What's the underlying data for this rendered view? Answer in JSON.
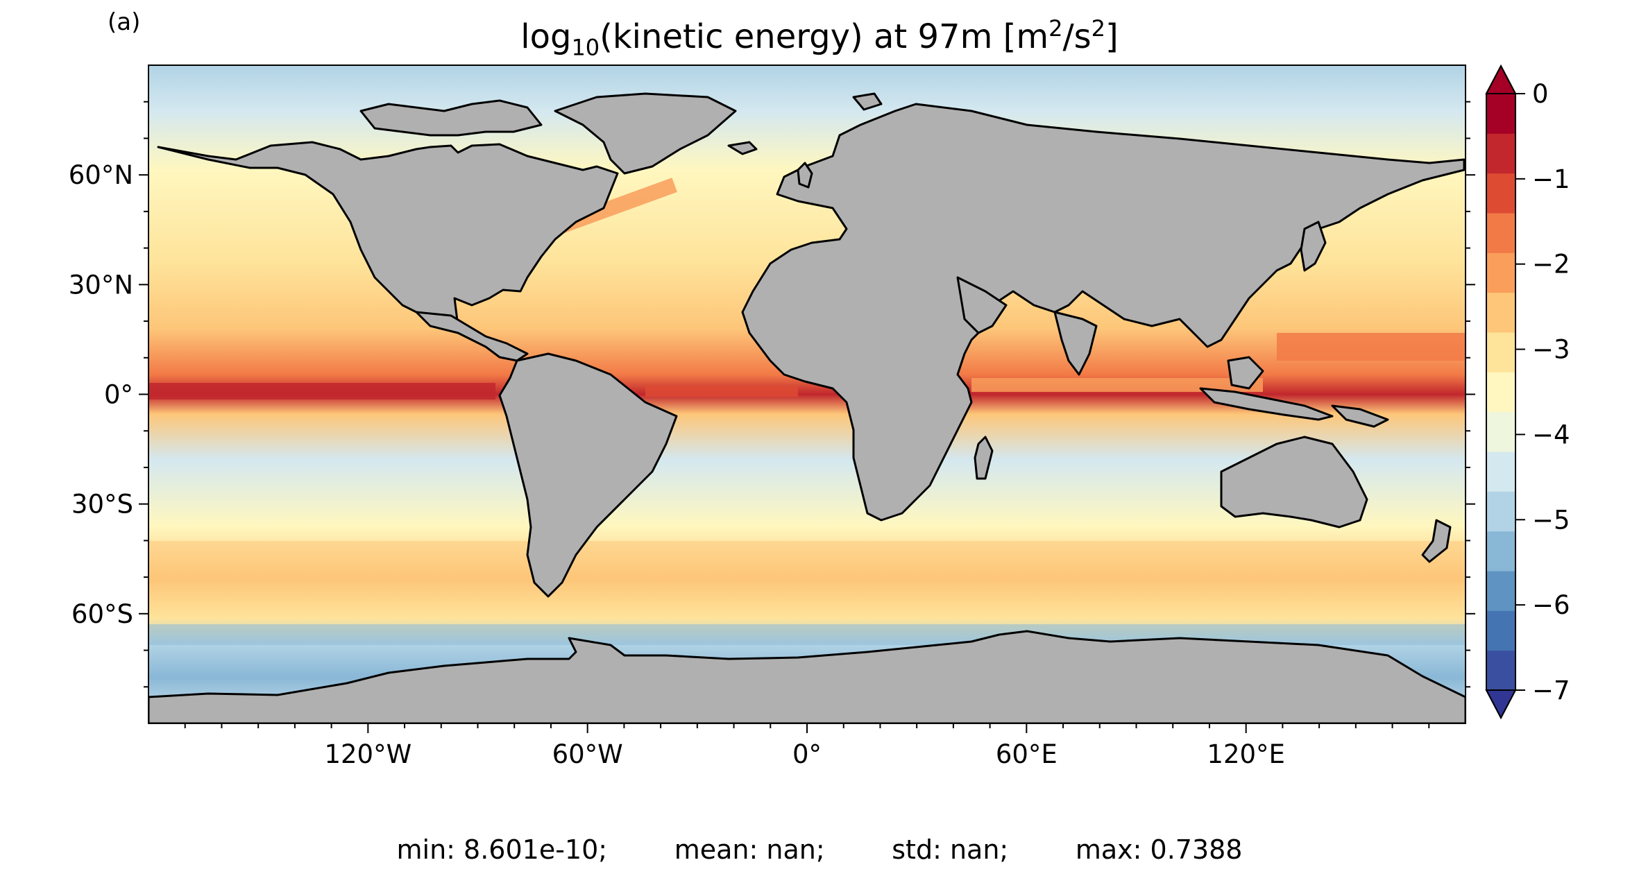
{
  "panel_label": "(a)",
  "title": {
    "prefix": "log",
    "sub": "10",
    "middle": "(kinetic energy) at 97m [m",
    "sup1": "2",
    "mid2": "/s",
    "sup2": "2",
    "suffix": "]"
  },
  "map": {
    "projection": "equirectangular",
    "lon_range": [
      -180,
      180
    ],
    "lat_range": [
      -90,
      90
    ],
    "land_color": "#b0b0b0",
    "coast_color": "#000000",
    "ice_color": "#ffffff",
    "lat_ticks": [
      {
        "value": 60,
        "label": "60°N"
      },
      {
        "value": 30,
        "label": "30°N"
      },
      {
        "value": 0,
        "label": "0°"
      },
      {
        "value": -30,
        "label": "30°S"
      },
      {
        "value": -60,
        "label": "60°S"
      }
    ],
    "lon_ticks": [
      {
        "value": -120,
        "label": "120°W"
      },
      {
        "value": -60,
        "label": "60°W"
      },
      {
        "value": 0,
        "label": "0°"
      },
      {
        "value": 60,
        "label": "60°E"
      },
      {
        "value": 120,
        "label": "120°E"
      }
    ]
  },
  "colorbar": {
    "min": -7,
    "max": 0,
    "extend": "both",
    "ticks": [
      {
        "value": 0,
        "label": "0"
      },
      {
        "value": -1,
        "label": "−1"
      },
      {
        "value": -2,
        "label": "−2"
      },
      {
        "value": -3,
        "label": "−3"
      },
      {
        "value": -4,
        "label": "−4"
      },
      {
        "value": -5,
        "label": "−5"
      },
      {
        "value": -6,
        "label": "−6"
      },
      {
        "value": -7,
        "label": "−7"
      }
    ],
    "colors": [
      "#3b4fa0",
      "#4574b3",
      "#5e93c2",
      "#89b7d6",
      "#b1d3e5",
      "#d4e8f0",
      "#eef6dd",
      "#fff7bf",
      "#fee39a",
      "#fdc679",
      "#f99e5b",
      "#f27a47",
      "#dd4b33",
      "#c1272d",
      "#a50026"
    ],
    "under_color": "#313695",
    "over_color": "#a50026"
  },
  "stats": {
    "text": "min: 8.601e-10;        mean: nan;        std: nan;        max: 0.7388"
  }
}
